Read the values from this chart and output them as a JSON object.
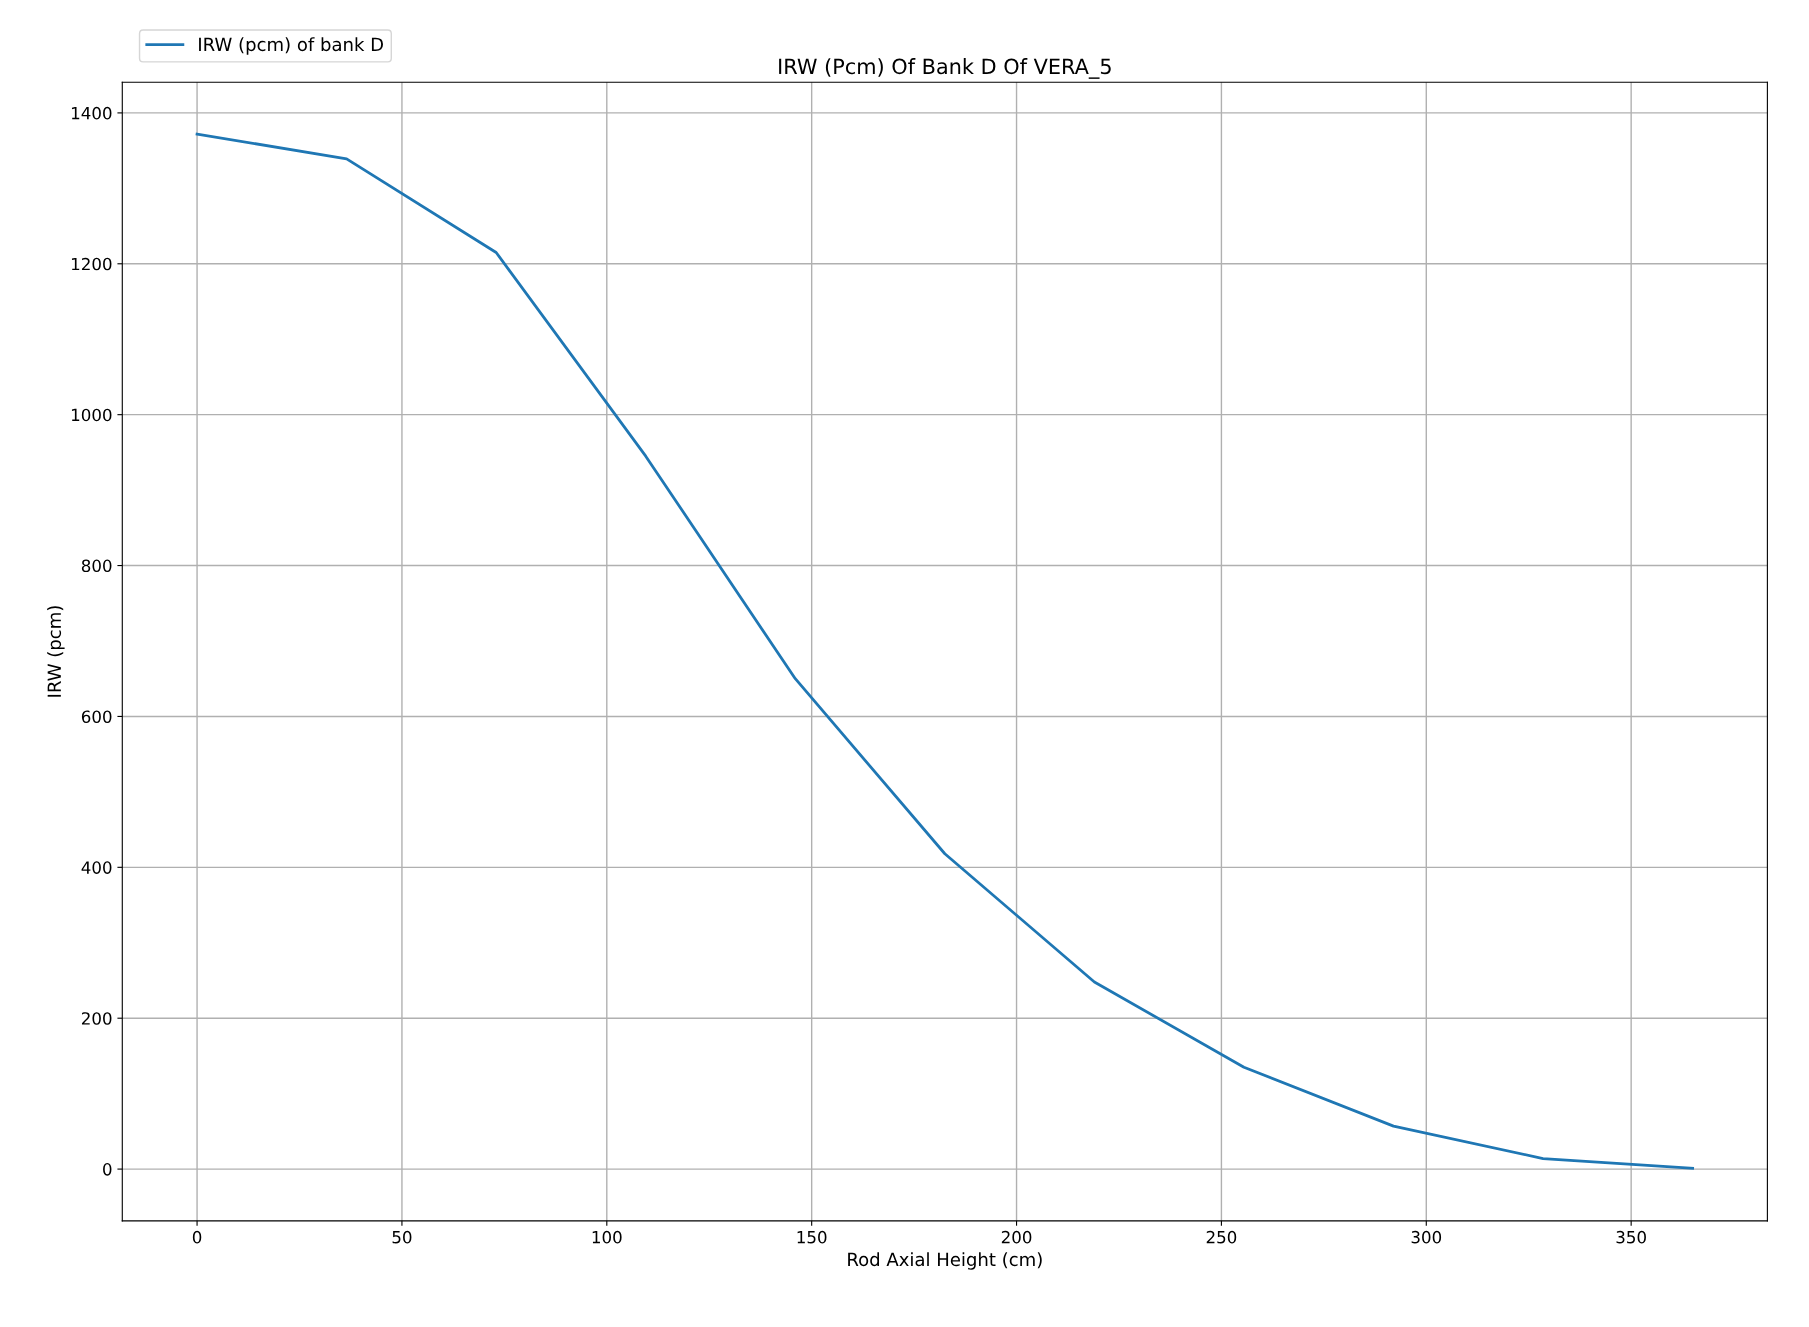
{
  "chart_data": {
    "type": "line",
    "title": "IRW (Pcm) Of Bank D Of VERA_5",
    "xlabel": "Rod Axial Height (cm)",
    "ylabel": "IRW (pcm)",
    "x": [
      0,
      36.5,
      73,
      109.5,
      146,
      182.5,
      219,
      255.5,
      292,
      328.5,
      365
    ],
    "series": [
      {
        "name": "IRW (pcm) of bank D",
        "color": "#1f77b4",
        "values": [
          1372,
          1339,
          1215,
          945,
          650,
          418,
          248,
          135,
          57,
          14,
          1
        ]
      }
    ],
    "xlim": [
      -18.25,
      383.25
    ],
    "ylim": [
      -68.6,
      1440.6
    ],
    "xticks": [
      0,
      50,
      100,
      150,
      200,
      250,
      300,
      350
    ],
    "yticks": [
      0,
      200,
      400,
      600,
      800,
      1000,
      1200,
      1400
    ],
    "grid": true,
    "legend": "top left",
    "marker": "none",
    "line_style": "solid"
  }
}
